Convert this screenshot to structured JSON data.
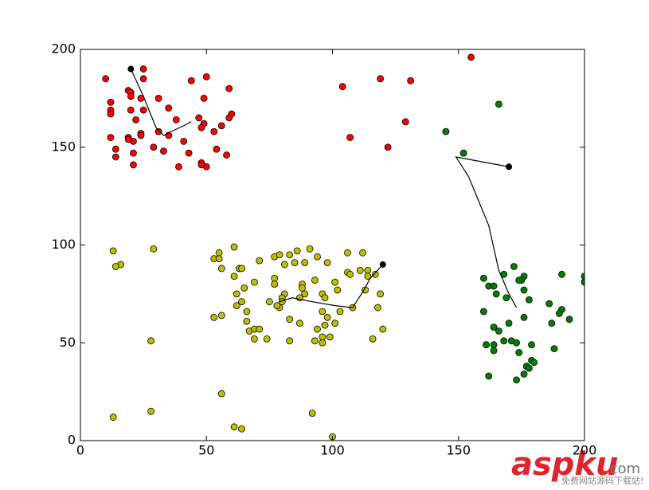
{
  "chart_data": {
    "type": "scatter",
    "xlim": [
      0,
      200
    ],
    "ylim": [
      0,
      200
    ],
    "xticks": [
      0,
      50,
      100,
      150,
      200
    ],
    "yticks": [
      0,
      50,
      100,
      150,
      200
    ],
    "grid": false,
    "series": [
      {
        "color": "#ff0000",
        "x": [
          10,
          12,
          12,
          12,
          14,
          14,
          12,
          19,
          20,
          20,
          20,
          22,
          24,
          25,
          25,
          25,
          24,
          24,
          21,
          21,
          19,
          19,
          21,
          29,
          31,
          31,
          35,
          33,
          35,
          38,
          39,
          41,
          43,
          44,
          47,
          49,
          48,
          49,
          50,
          48,
          50,
          48,
          53,
          54,
          56,
          58,
          59,
          60,
          59,
          104,
          107,
          119,
          122,
          129,
          131,
          155
        ],
        "values": [
          185,
          173,
          169,
          167,
          149,
          145,
          155,
          179,
          178,
          176,
          169,
          164,
          175,
          190,
          185,
          169,
          157,
          156,
          153,
          147,
          155,
          154,
          141,
          150,
          158,
          175,
          170,
          148,
          156,
          164,
          140,
          153,
          147,
          184,
          165,
          162,
          160,
          175,
          186,
          142,
          140,
          141,
          158,
          149,
          161,
          146,
          180,
          167,
          165,
          181,
          155,
          185,
          150,
          163,
          184,
          196
        ]
      },
      {
        "color": "#008000",
        "x": [
          145,
          152,
          166,
          160,
          162,
          164,
          165,
          168,
          160,
          169,
          172,
          176,
          175,
          176,
          174,
          178,
          176,
          186,
          187,
          191,
          191,
          190,
          194,
          200,
          200,
          164,
          166,
          170,
          164,
          164,
          161,
          162,
          168,
          171,
          173,
          174,
          179,
          177,
          179,
          178,
          180,
          176,
          173,
          188
        ],
        "values": [
          158,
          147,
          172,
          83,
          79,
          79,
          75,
          85,
          66,
          73,
          89,
          84,
          82,
          77,
          82,
          72,
          63,
          70,
          60,
          85,
          67,
          65,
          62,
          84,
          81,
          58,
          56,
          60,
          49,
          46,
          49,
          33,
          51,
          51,
          50,
          45,
          49,
          38,
          41,
          37,
          40,
          34,
          31,
          47
        ]
      },
      {
        "color": "#bfbf00",
        "x": [
          13,
          16,
          14,
          29,
          28,
          13,
          28,
          56,
          61,
          64,
          92,
          100,
          61,
          55,
          53,
          55,
          56,
          63,
          64,
          61,
          69,
          65,
          62,
          64,
          62,
          66,
          66,
          67,
          69,
          69,
          71,
          71,
          53,
          56,
          77,
          79,
          83,
          86,
          91,
          94,
          98,
          85,
          89,
          81,
          77,
          77,
          88,
          88,
          89,
          93,
          81,
          80,
          79,
          75,
          78,
          83,
          87,
          87,
          96,
          101,
          102,
          106,
          112,
          106,
          107,
          111,
          114,
          114,
          117,
          113,
          119,
          118,
          120,
          116,
          97,
          98,
          108,
          103,
          96,
          101,
          94,
          93,
          97,
          99,
          96,
          96,
          83,
          74,
          80
        ],
        "values": [
          97,
          90,
          89,
          98,
          51,
          12,
          15,
          24,
          7,
          6,
          14,
          2,
          99,
          96,
          93,
          93,
          88,
          88,
          88,
          84,
          81,
          78,
          75,
          71,
          69,
          66,
          61,
          56,
          52,
          57,
          57,
          92,
          63,
          64,
          94,
          95,
          95,
          97,
          98,
          94,
          91,
          91,
          91,
          90,
          83,
          80,
          80,
          78,
          75,
          82,
          75,
          73,
          68,
          71,
          69,
          62,
          60,
          73,
          75,
          81,
          77,
          96,
          96,
          86,
          85,
          87,
          87,
          84,
          85,
          77,
          75,
          68,
          57,
          52,
          73,
          63,
          68,
          66,
          66,
          60,
          57,
          51,
          59,
          53,
          53,
          50,
          51,
          52,
          71
        ]
      }
    ],
    "paths": [
      {
        "color": "#000000",
        "x": [
          20,
          25,
          30,
          33,
          36,
          41,
          44
        ],
        "values": [
          190,
          176,
          160,
          156,
          158,
          161,
          163
        ]
      },
      {
        "color": "#000000",
        "x": [
          170,
          149,
          154,
          162,
          166,
          170,
          173
        ],
        "values": [
          140,
          145,
          135,
          110,
          87,
          75,
          68
        ]
      },
      {
        "color": "#000000",
        "x": [
          120,
          115,
          112,
          108,
          101,
          92,
          84,
          79
        ],
        "values": [
          90,
          83,
          76,
          68,
          69,
          71,
          73,
          71
        ]
      }
    ]
  },
  "watermark": {
    "brand": "aspku",
    "domain": ".com",
    "slogan": "免费网站源码下载站!"
  }
}
